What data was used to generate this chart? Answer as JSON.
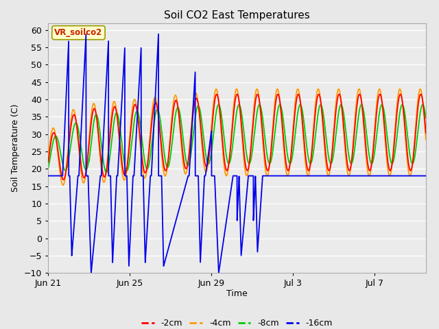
{
  "title": "Soil CO2 East Temperatures",
  "xlabel": "Time",
  "ylabel": "Soil Temperature (C)",
  "ylim": [
    -10,
    62
  ],
  "annotation_text": "VR_soilco2",
  "annotation_color": "#cc2200",
  "annotation_bg": "#ffffcc",
  "legend_labels": [
    "-2cm",
    "-4cm",
    "-8cm",
    "-16cm"
  ],
  "line_colors": [
    "#ff0000",
    "#ff9900",
    "#00cc00",
    "#0000ee"
  ],
  "bg_color": "#e8e8e8",
  "plot_bg_color": "#ebebeb",
  "grid_color": "#ffffff",
  "x_tick_labels": [
    "Jun 21",
    "Jun 25",
    "Jun 29",
    "Jul 3",
    "Jul 7"
  ],
  "x_tick_positions": [
    0,
    4,
    8,
    12,
    16
  ],
  "yticks": [
    -10,
    -5,
    0,
    5,
    10,
    15,
    20,
    25,
    30,
    35,
    40,
    45,
    50,
    55,
    60
  ],
  "xlim": [
    0,
    18.5
  ]
}
